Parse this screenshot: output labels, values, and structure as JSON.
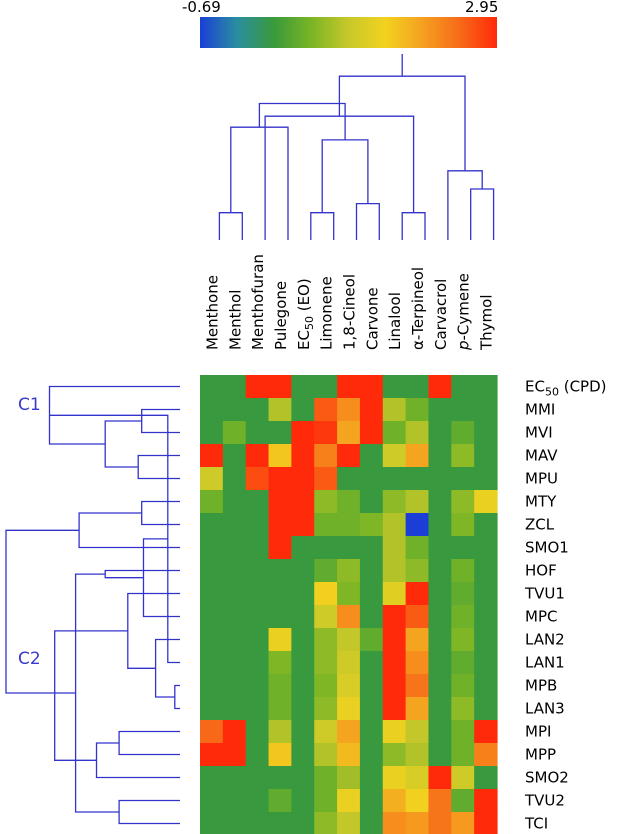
{
  "chart_data": {
    "type": "heatmap",
    "title": "",
    "colorbar": {
      "min_label": "-0.69",
      "max_label": "2.95",
      "range": [
        -0.69,
        2.95
      ],
      "stops": [
        "#1b3fd6",
        "#2a8ea0",
        "#3a9a3a",
        "#7ab526",
        "#c8c82a",
        "#f2d21f",
        "#f5a020",
        "#f76a18",
        "#ff2a0a"
      ]
    },
    "columns": [
      "Menthone",
      "Menthol",
      "Menthofuran",
      "Pulegone",
      "EC50 (EO)",
      "Limonene",
      "1,8-Cineol",
      "Carvone",
      "Linalool",
      "α-Terpineol",
      "Carvacrol",
      "p-Cymene",
      "Thymol"
    ],
    "column_labels": [
      {
        "text": "Menthone"
      },
      {
        "text": "Menthol"
      },
      {
        "text": "Menthofuran"
      },
      {
        "text": "Pulegone"
      },
      {
        "text": "EC",
        "sub": "50",
        "tail": " (EO)"
      },
      {
        "text": "Limonene"
      },
      {
        "text": "1,8-Cineol"
      },
      {
        "text": "Carvone"
      },
      {
        "text": "Linalool"
      },
      {
        "text": "α-Terpineol"
      },
      {
        "text": "Carvacrol"
      },
      {
        "text": "p",
        "italic": true,
        "tail": "-Cymene"
      },
      {
        "text": "Thymol"
      }
    ],
    "rows": [
      "EC50 (CPD)",
      "MMI",
      "MVI",
      "MAV",
      "MPU",
      "MTY",
      "ZCL",
      "SMO1",
      "HOF",
      "TVU1",
      "MPC",
      "LAN2",
      "LAN1",
      "MPB",
      "LAN3",
      "MPI",
      "MPP",
      "SMO2",
      "TVU2",
      "TCI"
    ],
    "row_labels": [
      {
        "text": "EC",
        "sub": "50",
        "tail": " (CPD)"
      },
      {
        "text": "MMI"
      },
      {
        "text": "MVI"
      },
      {
        "text": "MAV"
      },
      {
        "text": "MPU"
      },
      {
        "text": "MTY"
      },
      {
        "text": "ZCL"
      },
      {
        "text": "SMO1"
      },
      {
        "text": "HOF"
      },
      {
        "text": "TVU1"
      },
      {
        "text": "MPC"
      },
      {
        "text": "LAN2"
      },
      {
        "text": "LAN1"
      },
      {
        "text": "MPB"
      },
      {
        "text": "LAN3"
      },
      {
        "text": "MPI"
      },
      {
        "text": "MPP"
      },
      {
        "text": "SMO2"
      },
      {
        "text": "TVU2"
      },
      {
        "text": "TCI"
      }
    ],
    "values": [
      [
        0.2,
        0.2,
        2.95,
        2.95,
        0.2,
        0.2,
        2.95,
        2.95,
        0.2,
        0.2,
        2.95,
        0.2,
        0.2
      ],
      [
        0.2,
        0.2,
        0.2,
        1.0,
        0.2,
        2.6,
        2.2,
        2.95,
        1.0,
        0.6,
        0.2,
        0.2,
        0.2
      ],
      [
        0.2,
        0.6,
        0.2,
        0.2,
        2.95,
        2.85,
        2.0,
        2.95,
        0.6,
        1.0,
        0.2,
        0.5,
        0.2
      ],
      [
        2.95,
        0.2,
        2.95,
        1.7,
        2.95,
        2.3,
        2.95,
        0.2,
        1.2,
        2.0,
        0.2,
        0.8,
        0.2
      ],
      [
        1.2,
        0.2,
        2.7,
        2.95,
        2.95,
        2.6,
        0.2,
        0.2,
        0.2,
        0.2,
        0.2,
        0.2,
        0.2
      ],
      [
        0.6,
        0.2,
        0.2,
        2.95,
        2.95,
        0.8,
        0.6,
        0.2,
        0.8,
        1.0,
        0.2,
        0.8,
        1.5
      ],
      [
        0.2,
        0.2,
        0.2,
        2.95,
        2.95,
        0.6,
        0.6,
        0.7,
        1.0,
        -0.69,
        0.2,
        0.7,
        0.2
      ],
      [
        0.2,
        0.2,
        0.2,
        2.95,
        0.2,
        0.2,
        0.2,
        0.2,
        1.0,
        0.6,
        0.2,
        0.2,
        0.2
      ],
      [
        0.2,
        0.2,
        0.2,
        0.2,
        0.2,
        0.5,
        0.8,
        0.2,
        1.0,
        0.8,
        0.2,
        0.6,
        0.2
      ],
      [
        0.2,
        0.2,
        0.2,
        0.2,
        0.2,
        1.6,
        0.7,
        0.2,
        1.4,
        2.95,
        0.2,
        0.5,
        0.2
      ],
      [
        0.2,
        0.2,
        0.2,
        0.2,
        0.2,
        1.2,
        2.2,
        0.2,
        2.95,
        2.6,
        0.2,
        0.6,
        0.2
      ],
      [
        0.2,
        0.2,
        0.2,
        1.5,
        0.2,
        0.8,
        1.1,
        0.5,
        2.95,
        2.0,
        0.2,
        0.7,
        0.2
      ],
      [
        0.2,
        0.2,
        0.2,
        0.7,
        0.2,
        0.8,
        1.2,
        0.2,
        2.95,
        2.2,
        0.2,
        0.5,
        0.2
      ],
      [
        0.2,
        0.2,
        0.2,
        0.6,
        0.2,
        0.7,
        1.3,
        0.2,
        2.95,
        2.4,
        0.2,
        0.6,
        0.2
      ],
      [
        0.2,
        0.2,
        0.2,
        0.6,
        0.2,
        0.8,
        1.5,
        0.2,
        2.95,
        2.0,
        0.2,
        0.8,
        0.2
      ],
      [
        2.5,
        2.95,
        0.2,
        1.0,
        0.2,
        1.2,
        2.0,
        0.2,
        1.5,
        1.1,
        0.2,
        0.6,
        2.95
      ],
      [
        2.95,
        2.95,
        0.2,
        1.7,
        0.2,
        1.0,
        1.8,
        0.2,
        0.8,
        1.0,
        0.2,
        0.6,
        2.3
      ],
      [
        0.2,
        0.2,
        0.2,
        0.2,
        0.2,
        0.6,
        0.9,
        0.2,
        1.5,
        1.3,
        2.95,
        1.2,
        0.2
      ],
      [
        0.2,
        0.2,
        0.2,
        0.5,
        0.2,
        0.6,
        1.5,
        0.2,
        1.9,
        1.6,
        2.4,
        0.5,
        2.95
      ],
      [
        0.2,
        0.2,
        0.2,
        0.2,
        0.2,
        0.8,
        1.1,
        0.2,
        2.2,
        2.1,
        2.4,
        2.1,
        2.95
      ]
    ],
    "cluster_labels": [
      "C1",
      "C2"
    ],
    "column_tree": [
      {
        "a": 0,
        "b": 1,
        "h": 0.85
      },
      {
        "a": 4,
        "b": 5,
        "h": 0.85
      },
      {
        "a": 6,
        "b": 7,
        "h": 0.8
      },
      {
        "a": 8,
        "b": 9,
        "h": 0.85
      },
      {
        "a": 11,
        "b": 12,
        "h": 0.72
      },
      {
        "a": 14,
        "b": 15,
        "h": 0.45
      },
      {
        "a": 3,
        "b": 13,
        "h": 0.38
      },
      {
        "a": 2,
        "b": 16,
        "h": 0.32
      },
      {
        "a": 10,
        "b": 17,
        "h": 0.62
      },
      {
        "a": 18,
        "b": 19,
        "h": 0.25
      },
      {
        "a": 20,
        "b": 21,
        "h": 0.1
      }
    ],
    "row_tree": [
      {
        "a": 1,
        "b": 2,
        "h": 0.78
      },
      {
        "a": 3,
        "b": 4,
        "h": 0.76
      },
      {
        "a": 5,
        "b": 6,
        "h": 0.78
      },
      {
        "a": 20,
        "b": 21,
        "h": 0.57
      },
      {
        "a": 22,
        "b": 7,
        "h": 0.42
      },
      {
        "a": 0,
        "b": 23,
        "h": 0.25
      },
      {
        "a": 13,
        "b": 14,
        "h": 0.97
      },
      {
        "a": 12,
        "b": 25,
        "h": 0.93
      },
      {
        "a": 11,
        "b": 26,
        "h": 0.86
      },
      {
        "a": 10,
        "b": 27,
        "h": 0.79
      },
      {
        "a": 9,
        "b": 28,
        "h": 0.7
      },
      {
        "a": 8,
        "b": 29,
        "h": 0.57
      },
      {
        "a": 15,
        "b": 16,
        "h": 0.65
      },
      {
        "a": 18,
        "b": 19,
        "h": 0.65
      },
      {
        "a": 17,
        "b": 32,
        "h": 0.52
      },
      {
        "a": 31,
        "b": 33,
        "h": 0.4
      },
      {
        "a": 30,
        "b": 34,
        "h": 0.28
      },
      {
        "a": 24,
        "b": 35,
        "h": 0.0
      }
    ]
  }
}
